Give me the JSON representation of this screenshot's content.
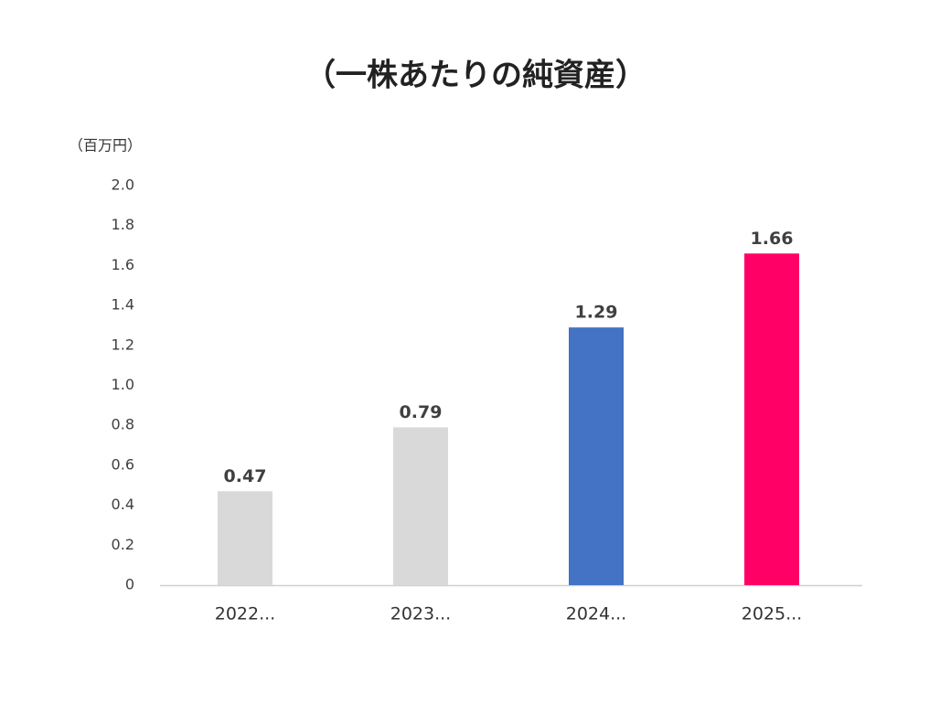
{
  "chart_data": {
    "type": "bar",
    "title": "（一株あたりの純資産）",
    "y_label": "（百万円）",
    "categories": [
      "2022...",
      "2023...",
      "2024...",
      "2025..."
    ],
    "values": [
      0.47,
      0.79,
      1.29,
      1.66
    ],
    "colors": [
      "#d9d9d9",
      "#d9d9d9",
      "#4472c4",
      "#ff0066"
    ],
    "ylim": [
      0,
      2
    ],
    "yticks": [
      0,
      0.2,
      0.4,
      0.6,
      0.8,
      {
        "value": 1,
        "label": "1.0"
      },
      1.2,
      1.4,
      1.6,
      1.8,
      {
        "value": 2,
        "label": "2.0"
      }
    ],
    "grid": false
  }
}
